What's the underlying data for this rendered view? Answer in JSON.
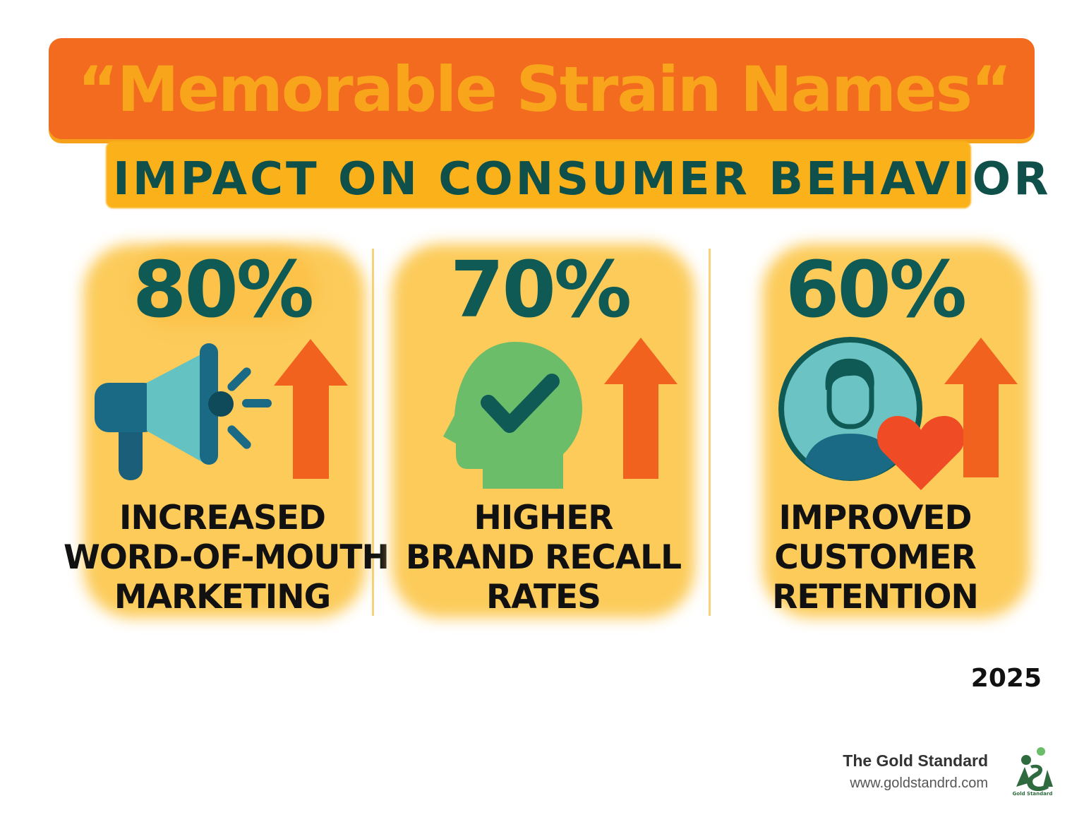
{
  "header": {
    "title": "“Memorable Strain Names“",
    "subtitle": "IMPACT ON CONSUMER BEHAVIOR"
  },
  "stats": [
    {
      "percent": "80%",
      "value": 80,
      "icon": "megaphone-icon",
      "label_lines": [
        "INCREASED",
        "WORD-OF-MOUTH",
        "MARKETING"
      ]
    },
    {
      "percent": "70%",
      "value": 70,
      "icon": "head-check-icon",
      "label_lines": [
        "HIGHER",
        "BRAND RECALL",
        "RATES"
      ]
    },
    {
      "percent": "60%",
      "value": 60,
      "icon": "customer-heart-icon",
      "label_lines": [
        "IMPROVED",
        "CUSTOMER",
        "RETENTION"
      ]
    }
  ],
  "year": "2025",
  "footer": {
    "brand": "The Gold Standard",
    "url": "www.goldstandrd.com",
    "logo_text": "Gold Standard"
  },
  "colors": {
    "orange": "#f26b1f",
    "gold": "#f9a51b",
    "teal_dark": "#0f5a55",
    "glow": "#fccb5a",
    "arrow": "#f2621f",
    "head_green": "#6cbd6a",
    "heart_red": "#ef4b24"
  }
}
